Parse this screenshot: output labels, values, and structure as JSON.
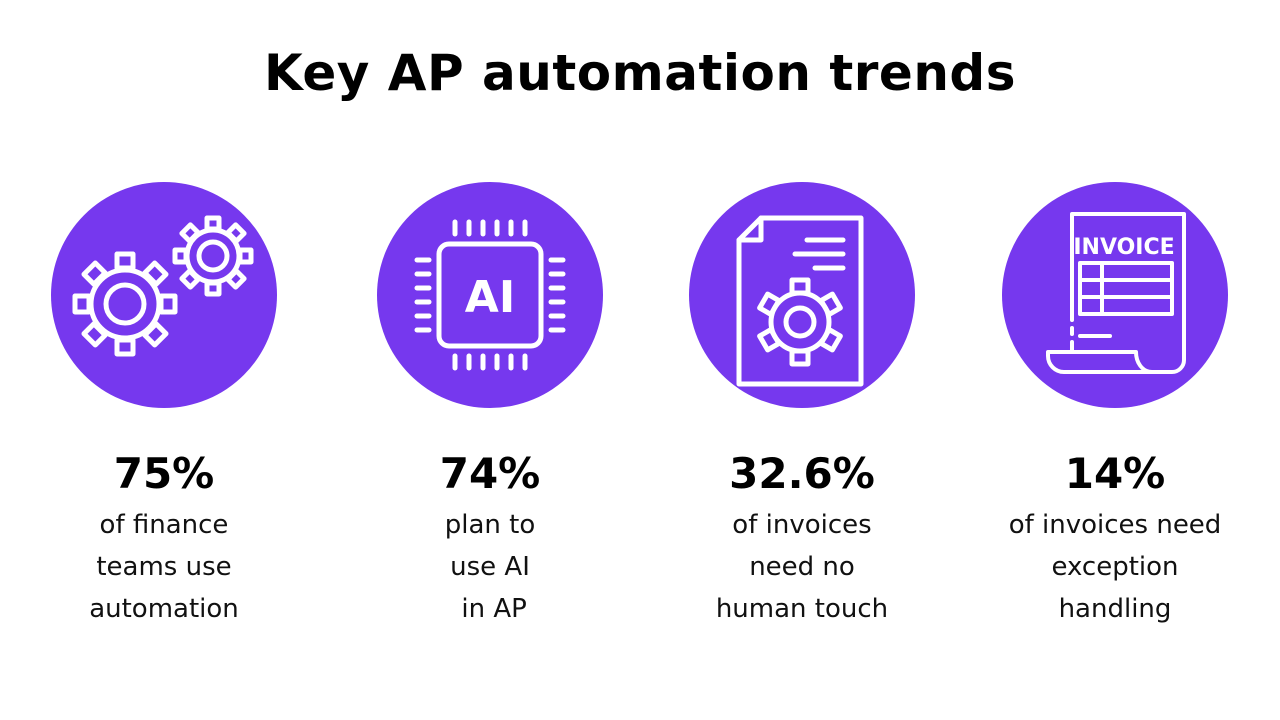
{
  "title": "Key AP automation trends",
  "accent_color": "#7638EE",
  "stats": [
    {
      "icon": "gears-icon",
      "value": "75%",
      "lines": [
        "of finance",
        "teams use",
        "automation"
      ]
    },
    {
      "icon": "ai-chip-icon",
      "icon_text": "AI",
      "value": "74%",
      "lines": [
        "plan to",
        "use AI",
        " in AP"
      ]
    },
    {
      "icon": "document-gear-icon",
      "value": "32.6%",
      "lines": [
        "of invoices",
        "need no",
        "human touch"
      ]
    },
    {
      "icon": "invoice-icon",
      "icon_text": "INVOICE",
      "value": "14%",
      "lines": [
        "of invoices need",
        "exception",
        "handling"
      ]
    }
  ]
}
